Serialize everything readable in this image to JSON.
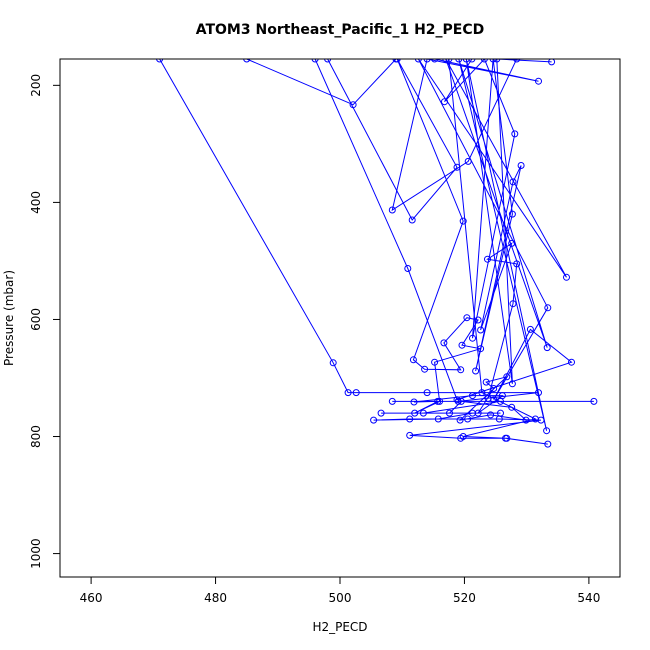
{
  "chart_data": {
    "type": "line",
    "title": "ATOM3 Northeast_Pacific_1 H2_PECD",
    "xlabel": "H2_PECD",
    "ylabel": "Pressure (mbar)",
    "xlim": [
      455,
      545
    ],
    "ylim": [
      1040,
      155
    ],
    "x_ticks": [
      460,
      480,
      500,
      520,
      540
    ],
    "y_ticks": [
      200,
      400,
      600,
      800,
      1000
    ],
    "grid": false,
    "legend": "none",
    "series_color": "#0000ff",
    "series": [
      {
        "points": [
          [
            471,
            155
          ],
          [
            498.9,
            674
          ],
          [
            501.3,
            725
          ],
          [
            502.6,
            725
          ],
          [
            514,
            725
          ],
          [
            531.9,
            725
          ],
          [
            519,
            740
          ],
          [
            508.4,
            740
          ],
          [
            540.8,
            740
          ],
          [
            525.8,
            740
          ],
          [
            513.4,
            760
          ],
          [
            506.6,
            760
          ],
          [
            525.8,
            760
          ],
          [
            521.3,
            760
          ],
          [
            515.8,
            770
          ],
          [
            505.4,
            772
          ],
          [
            511.2,
            770
          ],
          [
            520.5,
            770
          ],
          [
            525.6,
            770
          ],
          [
            532.3,
            772
          ],
          [
            511.2,
            798
          ],
          [
            519.4,
            803
          ],
          [
            526.8,
            803
          ],
          [
            533.4,
            813
          ],
          [
            526.6,
            803
          ],
          [
            519.8,
            800
          ],
          [
            531.4,
            770
          ],
          [
            522.8,
            725
          ],
          [
            517.5,
            155
          ]
        ]
      },
      {
        "points": [
          [
            485,
            155
          ],
          [
            502.1,
            233
          ],
          [
            509,
            155
          ],
          [
            528.4,
            155
          ],
          [
            520.6,
            330
          ],
          [
            508.4,
            413
          ],
          [
            514,
            155
          ],
          [
            531.9,
            193
          ],
          [
            515.2,
            155
          ],
          [
            521.2,
            155
          ],
          [
            516.8,
            228
          ],
          [
            523.2,
            155
          ],
          [
            528.1,
            283
          ],
          [
            521.3,
            632
          ],
          [
            524.6,
            155
          ],
          [
            527.7,
            420
          ],
          [
            521.8,
            688
          ],
          [
            529.1,
            337
          ],
          [
            527.8,
            365
          ],
          [
            522.6,
            618
          ],
          [
            527.6,
            470
          ],
          [
            523.7,
            497
          ],
          [
            528.4,
            505
          ],
          [
            527.8,
            573
          ],
          [
            523.8,
            735
          ]
        ]
      },
      {
        "points": [
          [
            496,
            155
          ],
          [
            510.9,
            513
          ],
          [
            518.8,
            737
          ],
          [
            537.2,
            673
          ],
          [
            530.6,
            617
          ],
          [
            524.7,
            737
          ],
          [
            533.4,
            580
          ],
          [
            512.6,
            155
          ],
          [
            536.4,
            528
          ],
          [
            517,
            155
          ],
          [
            533.3,
            648
          ],
          [
            519.1,
            155
          ],
          [
            533.2,
            790
          ],
          [
            520.3,
            155
          ],
          [
            527.7,
            710
          ],
          [
            525.2,
            155
          ],
          [
            534,
            160
          ]
        ]
      },
      {
        "points": [
          [
            498,
            155
          ],
          [
            511.6,
            430
          ],
          [
            518.8,
            340
          ],
          [
            509.2,
            155
          ],
          [
            519.8,
            432
          ],
          [
            511.8,
            669
          ],
          [
            513.6,
            685
          ],
          [
            519.4,
            686
          ],
          [
            516.7,
            640
          ],
          [
            520.4,
            597
          ],
          [
            522.2,
            601
          ],
          [
            519.6,
            644
          ],
          [
            522.6,
            650
          ],
          [
            515.2,
            673
          ],
          [
            516,
            740
          ],
          [
            512,
            760
          ],
          [
            515.7,
            740
          ],
          [
            511.9,
            741
          ],
          [
            521.3,
            730
          ],
          [
            526.1,
            730
          ],
          [
            522.2,
            760
          ],
          [
            524.7,
            718
          ],
          [
            523.5,
            707
          ],
          [
            526.8,
            698
          ],
          [
            519.3,
            772
          ],
          [
            524.2,
            763
          ],
          [
            529.9,
            772
          ],
          [
            527.6,
            750
          ],
          [
            519.5,
            740
          ],
          [
            517.6,
            760
          ]
        ]
      }
    ]
  }
}
